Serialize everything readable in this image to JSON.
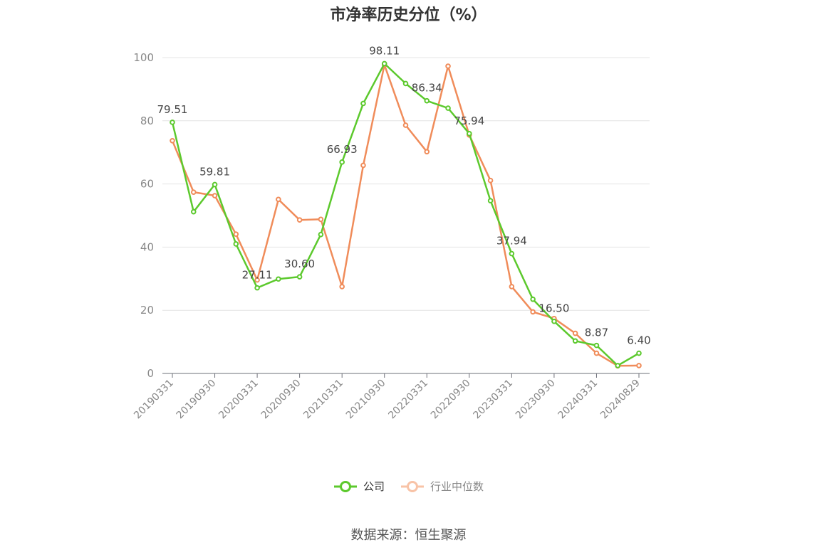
{
  "chart_data": {
    "type": "line",
    "title": "市净率历史分位（%）",
    "source": "数据来源：恒生聚源",
    "ylim": [
      0,
      100
    ],
    "yticks": [
      0,
      20,
      40,
      60,
      80,
      100
    ],
    "x": [
      "20190331",
      "20190630",
      "20190930",
      "20191231",
      "20200331",
      "20200630",
      "20200930",
      "20201231",
      "20210331",
      "20210630",
      "20210930",
      "20211231",
      "20220331",
      "20220630",
      "20220930",
      "20221231",
      "20230331",
      "20230630",
      "20230930",
      "20231231",
      "20240331",
      "20240630",
      "20240829"
    ],
    "xtick_labels": [
      "20190331",
      "20190930",
      "20200331",
      "20200930",
      "20210331",
      "20210930",
      "20220331",
      "20220930",
      "20230331",
      "20230930",
      "20240331",
      "20240829"
    ],
    "grid": true,
    "legend_position": "bottom-center",
    "series": [
      {
        "name": "公司",
        "color": "#5cc92d",
        "values": [
          79.51,
          51.2,
          59.81,
          41.0,
          27.11,
          29.9,
          30.6,
          44.0,
          66.93,
          85.5,
          98.11,
          91.8,
          86.34,
          84.0,
          75.94,
          54.7,
          37.94,
          23.5,
          16.5,
          10.3,
          8.87,
          2.5,
          6.4
        ],
        "labels": [
          "79.51",
          "",
          "59.81",
          "",
          "27.11",
          "",
          "30.60",
          "",
          "66.93",
          "",
          "98.11",
          "",
          "86.34",
          "",
          "75.94",
          "",
          "37.94",
          "",
          "16.50",
          "",
          "8.87",
          "",
          "6.40"
        ]
      },
      {
        "name": "行业中位数",
        "color": "#f08c5a",
        "values": [
          73.7,
          57.4,
          56.3,
          44.1,
          29.6,
          55.1,
          48.6,
          48.8,
          27.5,
          65.9,
          97.7,
          78.6,
          70.2,
          97.3,
          75.5,
          61.1,
          27.5,
          19.5,
          17.4,
          12.7,
          6.4,
          2.4,
          2.5
        ]
      }
    ]
  }
}
